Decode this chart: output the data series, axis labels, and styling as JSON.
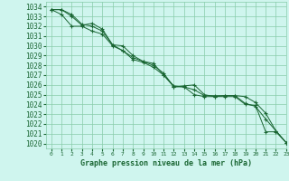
{
  "title": "Graphe pression niveau de la mer (hPa)",
  "background_color": "#cff5ee",
  "grid_color": "#88ccaa",
  "line_color": "#1a6633",
  "xlim": [
    -0.5,
    23
  ],
  "ylim": [
    1019.5,
    1034.5
  ],
  "yticks": [
    1020,
    1021,
    1022,
    1023,
    1024,
    1025,
    1026,
    1027,
    1028,
    1029,
    1030,
    1031,
    1032,
    1033,
    1034
  ],
  "xticks": [
    0,
    1,
    2,
    3,
    4,
    5,
    6,
    7,
    8,
    9,
    10,
    11,
    12,
    13,
    14,
    15,
    16,
    17,
    18,
    19,
    20,
    21,
    22,
    23
  ],
  "series": [
    [
      1033.7,
      1033.7,
      1033.2,
      1032.2,
      1032.0,
      1031.5,
      1030.1,
      1030.0,
      1029.0,
      1028.4,
      1028.2,
      1027.0,
      1025.8,
      1025.8,
      1025.0,
      1024.8,
      1024.8,
      1024.8,
      1024.8,
      1024.0,
      1023.9,
      1021.2,
      1021.2,
      1020.1
    ],
    [
      1033.7,
      1033.7,
      1033.0,
      1032.1,
      1032.3,
      1031.7,
      1030.1,
      1029.5,
      1028.8,
      1028.4,
      1028.0,
      1027.2,
      1025.8,
      1025.9,
      1026.0,
      1025.0,
      1024.8,
      1024.9,
      1024.9,
      1024.8,
      1024.2,
      1023.1,
      1021.3,
      1020.1
    ],
    [
      1033.7,
      1033.2,
      1032.0,
      1032.0,
      1031.5,
      1031.2,
      1030.0,
      1029.5,
      1028.6,
      1028.3,
      1027.8,
      1027.0,
      1025.9,
      1025.8,
      1025.5,
      1024.9,
      1024.9,
      1024.9,
      1024.9,
      1024.1,
      1023.8,
      1022.5,
      1021.3,
      1020.1
    ]
  ]
}
